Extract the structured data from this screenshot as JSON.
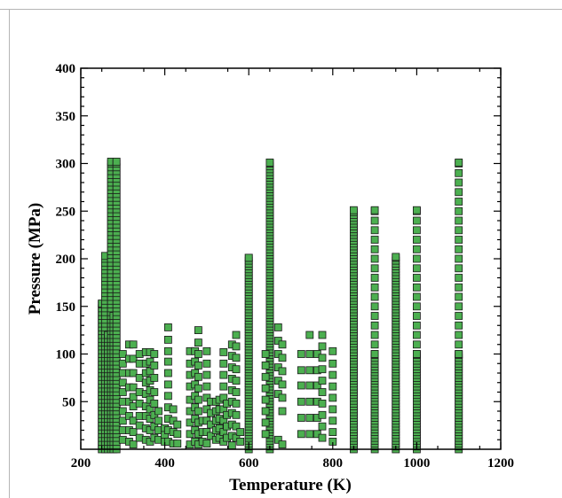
{
  "chart_data": {
    "type": "scatter",
    "title": "",
    "xlabel": "Temperature (K)",
    "ylabel": "Pressure (MPa)",
    "xlim": [
      200,
      1200
    ],
    "ylim": [
      0,
      400
    ],
    "xticks": [
      200,
      400,
      600,
      800,
      1000,
      1200
    ],
    "yticks": [
      50,
      100,
      150,
      200,
      250,
      300,
      350,
      400
    ],
    "x_tick_labels": [
      "200",
      "400",
      "600",
      "800",
      "1000",
      "1200"
    ],
    "y_tick_labels": [
      "50",
      "100",
      "150",
      "200",
      "250",
      "300",
      "350",
      "400"
    ],
    "grid": false,
    "marker": {
      "shape": "square",
      "fill": "#4caf50",
      "edge": "#1a1a1a"
    },
    "colors": {
      "marker_fill": "#4caf50",
      "marker_edge": "#1a1a1a",
      "axis": "#000000"
    },
    "series": [
      {
        "columns": [
          {
            "x": 250,
            "pmin": 0,
            "pmax": 153,
            "step": 4
          },
          {
            "x": 258,
            "pmin": 0,
            "pmax": 203,
            "step": 4
          },
          {
            "x": 265,
            "pmin": 0,
            "pmax": 120,
            "step": 4
          },
          {
            "x": 272,
            "pmin": 0,
            "pmax": 302,
            "step": 4
          },
          {
            "x": 278,
            "pmin": 0,
            "pmax": 140,
            "step": 4
          },
          {
            "x": 285,
            "pmin": 0,
            "pmax": 302,
            "step": 4
          },
          {
            "x": 600,
            "pmin": 0,
            "pmax": 201,
            "step": 3
          },
          {
            "x": 650,
            "pmin": 0,
            "pmax": 301,
            "step": 3
          },
          {
            "x": 850,
            "pmin": 0,
            "pmax": 251,
            "step": 3
          },
          {
            "x": 900,
            "pmin": 0,
            "pmax": 100,
            "step": 3
          },
          {
            "x": 900,
            "pmin": 100,
            "pmax": 251,
            "step": 10
          },
          {
            "x": 950,
            "pmin": 0,
            "pmax": 202,
            "step": 3
          },
          {
            "x": 1000,
            "pmin": 0,
            "pmax": 100,
            "step": 3
          },
          {
            "x": 1000,
            "pmin": 100,
            "pmax": 251,
            "step": 10
          },
          {
            "x": 1100,
            "pmin": 0,
            "pmax": 100,
            "step": 3
          },
          {
            "x": 1100,
            "pmin": 100,
            "pmax": 301,
            "step": 10
          }
        ],
        "points": [
          [
            300,
            100
          ],
          [
            300,
            90
          ],
          [
            300,
            80
          ],
          [
            300,
            70
          ],
          [
            300,
            60
          ],
          [
            300,
            50
          ],
          [
            300,
            40
          ],
          [
            300,
            30
          ],
          [
            300,
            20
          ],
          [
            300,
            10
          ],
          [
            315,
            110
          ],
          [
            315,
            95
          ],
          [
            315,
            80
          ],
          [
            315,
            65
          ],
          [
            315,
            50
          ],
          [
            315,
            35
          ],
          [
            315,
            20
          ],
          [
            315,
            8
          ],
          [
            325,
            110
          ],
          [
            325,
            95
          ],
          [
            325,
            80
          ],
          [
            325,
            65
          ],
          [
            325,
            55
          ],
          [
            325,
            45
          ],
          [
            325,
            30
          ],
          [
            325,
            18
          ],
          [
            325,
            5
          ],
          [
            340,
            100
          ],
          [
            340,
            90
          ],
          [
            340,
            75
          ],
          [
            340,
            60
          ],
          [
            340,
            48
          ],
          [
            340,
            35
          ],
          [
            340,
            25
          ],
          [
            340,
            12
          ],
          [
            355,
            102
          ],
          [
            355,
            90
          ],
          [
            355,
            80
          ],
          [
            355,
            70
          ],
          [
            355,
            58
          ],
          [
            355,
            45
          ],
          [
            355,
            35
          ],
          [
            355,
            22
          ],
          [
            355,
            10
          ],
          [
            365,
            102
          ],
          [
            365,
            92
          ],
          [
            365,
            82
          ],
          [
            365,
            72
          ],
          [
            365,
            62
          ],
          [
            365,
            52
          ],
          [
            365,
            42
          ],
          [
            365,
            32
          ],
          [
            365,
            20
          ],
          [
            365,
            8
          ],
          [
            375,
            100
          ],
          [
            375,
            88
          ],
          [
            375,
            75
          ],
          [
            375,
            60
          ],
          [
            375,
            48
          ],
          [
            375,
            36
          ],
          [
            375,
            24
          ],
          [
            375,
            12
          ],
          [
            385,
            40
          ],
          [
            385,
            30
          ],
          [
            385,
            20
          ],
          [
            385,
            10
          ],
          [
            400,
            22
          ],
          [
            400,
            15
          ],
          [
            400,
            8
          ],
          [
            408,
            128
          ],
          [
            408,
            115
          ],
          [
            408,
            103
          ],
          [
            408,
            92
          ],
          [
            408,
            80
          ],
          [
            408,
            68
          ],
          [
            408,
            56
          ],
          [
            408,
            44
          ],
          [
            408,
            32
          ],
          [
            408,
            20
          ],
          [
            408,
            8
          ],
          [
            420,
            42
          ],
          [
            420,
            30
          ],
          [
            420,
            18
          ],
          [
            420,
            6
          ],
          [
            430,
            26
          ],
          [
            430,
            16
          ],
          [
            430,
            6
          ],
          [
            460,
            103
          ],
          [
            460,
            90
          ],
          [
            460,
            78
          ],
          [
            460,
            66
          ],
          [
            460,
            52
          ],
          [
            460,
            40
          ],
          [
            460,
            28
          ],
          [
            460,
            16
          ],
          [
            460,
            5
          ],
          [
            472,
            103
          ],
          [
            472,
            92
          ],
          [
            472,
            80
          ],
          [
            472,
            68
          ],
          [
            472,
            56
          ],
          [
            472,
            44
          ],
          [
            472,
            32
          ],
          [
            472,
            20
          ],
          [
            472,
            8
          ],
          [
            480,
            125
          ],
          [
            480,
            112
          ],
          [
            480,
            100
          ],
          [
            480,
            88
          ],
          [
            480,
            76
          ],
          [
            480,
            64
          ],
          [
            480,
            52
          ],
          [
            480,
            40
          ],
          [
            480,
            28
          ],
          [
            480,
            16
          ],
          [
            480,
            5
          ],
          [
            490,
            30
          ],
          [
            490,
            18
          ],
          [
            490,
            8
          ],
          [
            500,
            103
          ],
          [
            500,
            90
          ],
          [
            500,
            78
          ],
          [
            500,
            66
          ],
          [
            500,
            54
          ],
          [
            500,
            42
          ],
          [
            500,
            30
          ],
          [
            500,
            18
          ],
          [
            500,
            6
          ],
          [
            510,
            50
          ],
          [
            510,
            38
          ],
          [
            510,
            26
          ],
          [
            510,
            14
          ],
          [
            522,
            50
          ],
          [
            522,
            40
          ],
          [
            522,
            30
          ],
          [
            522,
            20
          ],
          [
            522,
            10
          ],
          [
            530,
            52
          ],
          [
            530,
            42
          ],
          [
            530,
            32
          ],
          [
            530,
            22
          ],
          [
            530,
            12
          ],
          [
            540,
            102
          ],
          [
            540,
            90
          ],
          [
            540,
            78
          ],
          [
            540,
            66
          ],
          [
            540,
            54
          ],
          [
            540,
            42
          ],
          [
            540,
            30
          ],
          [
            540,
            18
          ],
          [
            540,
            8
          ],
          [
            548,
            48
          ],
          [
            548,
            36
          ],
          [
            548,
            24
          ],
          [
            548,
            12
          ],
          [
            560,
            110
          ],
          [
            560,
            98
          ],
          [
            560,
            86
          ],
          [
            560,
            74
          ],
          [
            560,
            62
          ],
          [
            560,
            50
          ],
          [
            560,
            38
          ],
          [
            560,
            26
          ],
          [
            560,
            14
          ],
          [
            560,
            4
          ],
          [
            570,
            120
          ],
          [
            570,
            108
          ],
          [
            570,
            96
          ],
          [
            570,
            84
          ],
          [
            570,
            72
          ],
          [
            570,
            60
          ],
          [
            570,
            48
          ],
          [
            570,
            36
          ],
          [
            570,
            24
          ],
          [
            570,
            12
          ],
          [
            580,
            18
          ],
          [
            580,
            8
          ],
          [
            640,
            100
          ],
          [
            640,
            88
          ],
          [
            640,
            76
          ],
          [
            640,
            64
          ],
          [
            640,
            52
          ],
          [
            640,
            40
          ],
          [
            640,
            28
          ],
          [
            640,
            16
          ],
          [
            670,
            128
          ],
          [
            670,
            114
          ],
          [
            670,
            100
          ],
          [
            670,
            86
          ],
          [
            670,
            72
          ],
          [
            670,
            58
          ],
          [
            670,
            10
          ],
          [
            680,
            110
          ],
          [
            680,
            96
          ],
          [
            680,
            82
          ],
          [
            680,
            68
          ],
          [
            680,
            54
          ],
          [
            680,
            40
          ],
          [
            680,
            5
          ],
          [
            725,
            100
          ],
          [
            725,
            83
          ],
          [
            725,
            67
          ],
          [
            725,
            50
          ],
          [
            725,
            33
          ],
          [
            725,
            16
          ],
          [
            745,
            120
          ],
          [
            745,
            100
          ],
          [
            745,
            83
          ],
          [
            745,
            67
          ],
          [
            745,
            50
          ],
          [
            745,
            33
          ],
          [
            745,
            16
          ],
          [
            763,
            100
          ],
          [
            763,
            83
          ],
          [
            763,
            67
          ],
          [
            763,
            50
          ],
          [
            763,
            33
          ],
          [
            763,
            16
          ],
          [
            775,
            120
          ],
          [
            775,
            108
          ],
          [
            775,
            96
          ],
          [
            775,
            84
          ],
          [
            775,
            72
          ],
          [
            775,
            60
          ],
          [
            775,
            48
          ],
          [
            775,
            36
          ],
          [
            775,
            24
          ],
          [
            775,
            12
          ],
          [
            800,
            103
          ],
          [
            800,
            90
          ],
          [
            800,
            78
          ],
          [
            800,
            66
          ],
          [
            800,
            54
          ],
          [
            800,
            42
          ],
          [
            800,
            30
          ],
          [
            800,
            18
          ],
          [
            800,
            8
          ]
        ]
      }
    ]
  }
}
